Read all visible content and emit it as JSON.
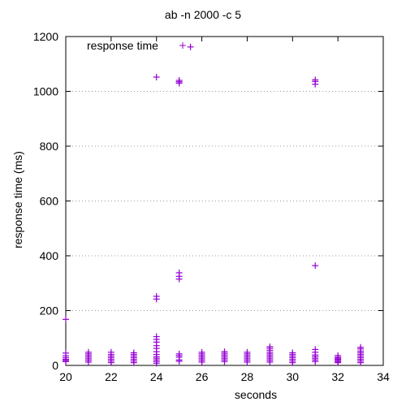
{
  "chart_data": {
    "type": "scatter",
    "title": "ab -n 2000 -c 5",
    "xlabel": "seconds",
    "ylabel": "response time (ms)",
    "xlim": [
      20,
      34
    ],
    "ylim": [
      0,
      1200
    ],
    "x_ticks": [
      "20",
      "22",
      "24",
      "26",
      "28",
      "30",
      "32",
      "34"
    ],
    "y_ticks": [
      "0",
      "200",
      "400",
      "600",
      "800",
      "1000",
      "1200"
    ],
    "grid": "horizontal dotted",
    "legend": "top-left",
    "color": "#9400d3",
    "series": [
      {
        "name": "response time",
        "marker": "plus",
        "points": [
          [
            20,
            168
          ],
          [
            20,
            45
          ],
          [
            20,
            35
          ],
          [
            20,
            28
          ],
          [
            20,
            22
          ],
          [
            20,
            18
          ],
          [
            20,
            14
          ],
          [
            21,
            48
          ],
          [
            21,
            42
          ],
          [
            21,
            36
          ],
          [
            21,
            30
          ],
          [
            21,
            24
          ],
          [
            21,
            18
          ],
          [
            21,
            12
          ],
          [
            22,
            48
          ],
          [
            22,
            40
          ],
          [
            22,
            34
          ],
          [
            22,
            28
          ],
          [
            22,
            22
          ],
          [
            22,
            16
          ],
          [
            22,
            10
          ],
          [
            23,
            46
          ],
          [
            23,
            40
          ],
          [
            23,
            34
          ],
          [
            23,
            28
          ],
          [
            23,
            22
          ],
          [
            23,
            16
          ],
          [
            23,
            10
          ],
          [
            24,
            1052
          ],
          [
            24,
            252
          ],
          [
            24,
            242
          ],
          [
            24,
            105
          ],
          [
            24,
            95
          ],
          [
            24,
            85
          ],
          [
            24,
            72
          ],
          [
            24,
            62
          ],
          [
            24,
            50
          ],
          [
            24,
            40
          ],
          [
            24,
            32
          ],
          [
            24,
            26
          ],
          [
            24,
            20
          ],
          [
            24,
            14
          ],
          [
            24,
            8
          ],
          [
            25,
            1040
          ],
          [
            25,
            1035
          ],
          [
            25,
            1030
          ],
          [
            25,
            338
          ],
          [
            25,
            325
          ],
          [
            25,
            315
          ],
          [
            25,
            42
          ],
          [
            25,
            36
          ],
          [
            25,
            30
          ],
          [
            25,
            20
          ],
          [
            25,
            15
          ],
          [
            25.5,
            1162
          ],
          [
            26,
            48
          ],
          [
            26,
            42
          ],
          [
            26,
            36
          ],
          [
            26,
            30
          ],
          [
            26,
            24
          ],
          [
            26,
            18
          ],
          [
            26,
            12
          ],
          [
            27,
            50
          ],
          [
            27,
            44
          ],
          [
            27,
            38
          ],
          [
            27,
            32
          ],
          [
            27,
            26
          ],
          [
            27,
            20
          ],
          [
            27,
            14
          ],
          [
            28,
            48
          ],
          [
            28,
            42
          ],
          [
            28,
            36
          ],
          [
            28,
            30
          ],
          [
            28,
            24
          ],
          [
            28,
            18
          ],
          [
            28,
            12
          ],
          [
            29,
            68
          ],
          [
            29,
            62
          ],
          [
            29,
            55
          ],
          [
            29,
            48
          ],
          [
            29,
            42
          ],
          [
            29,
            36
          ],
          [
            29,
            30
          ],
          [
            29,
            24
          ],
          [
            29,
            18
          ],
          [
            29,
            12
          ],
          [
            30,
            46
          ],
          [
            30,
            40
          ],
          [
            30,
            34
          ],
          [
            30,
            28
          ],
          [
            30,
            22
          ],
          [
            30,
            16
          ],
          [
            30,
            10
          ],
          [
            31,
            1042
          ],
          [
            31,
            1036
          ],
          [
            31,
            1026
          ],
          [
            31,
            364
          ],
          [
            31,
            58
          ],
          [
            31,
            48
          ],
          [
            31,
            38
          ],
          [
            31,
            32
          ],
          [
            31,
            26
          ],
          [
            31,
            20
          ],
          [
            31,
            14
          ],
          [
            32,
            36
          ],
          [
            32,
            30
          ],
          [
            32,
            26
          ],
          [
            32,
            22
          ],
          [
            32,
            18
          ],
          [
            32,
            14
          ],
          [
            32,
            10
          ],
          [
            33,
            66
          ],
          [
            33,
            60
          ],
          [
            33,
            52
          ],
          [
            33,
            46
          ],
          [
            33,
            40
          ],
          [
            33,
            34
          ],
          [
            33,
            28
          ],
          [
            33,
            22
          ],
          [
            33,
            16
          ],
          [
            33,
            10
          ]
        ]
      }
    ]
  }
}
